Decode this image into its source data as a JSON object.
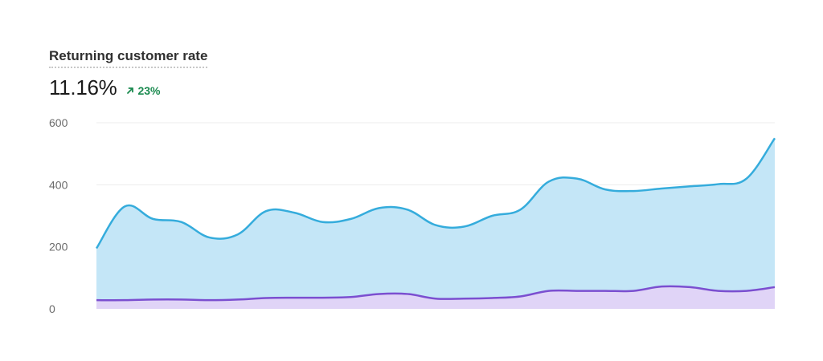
{
  "metric": {
    "title": "Returning customer rate",
    "value": "11.16%",
    "change": "23%",
    "change_icon": "arrow-up-right-icon",
    "change_color": "#1a8a4f"
  },
  "chart_data": {
    "type": "area",
    "ylim": [
      0,
      600
    ],
    "yticks": [
      "600",
      "400",
      "200",
      "0"
    ],
    "ytick_values": [
      600,
      400,
      200,
      0
    ],
    "grid": true,
    "series": [
      {
        "color": "#35acdc",
        "fill": "#c4e6f7",
        "values": [
          195,
          330,
          290,
          280,
          230,
          240,
          315,
          310,
          280,
          290,
          325,
          320,
          270,
          265,
          300,
          320,
          410,
          420,
          385,
          380,
          388,
          395,
          402,
          420,
          550
        ]
      },
      {
        "color": "#7b4fd0",
        "fill": "#e0d4f7",
        "values": [
          28,
          28,
          30,
          30,
          28,
          30,
          35,
          36,
          36,
          38,
          48,
          48,
          33,
          33,
          35,
          40,
          58,
          58,
          58,
          58,
          72,
          70,
          58,
          58,
          70
        ]
      }
    ]
  }
}
